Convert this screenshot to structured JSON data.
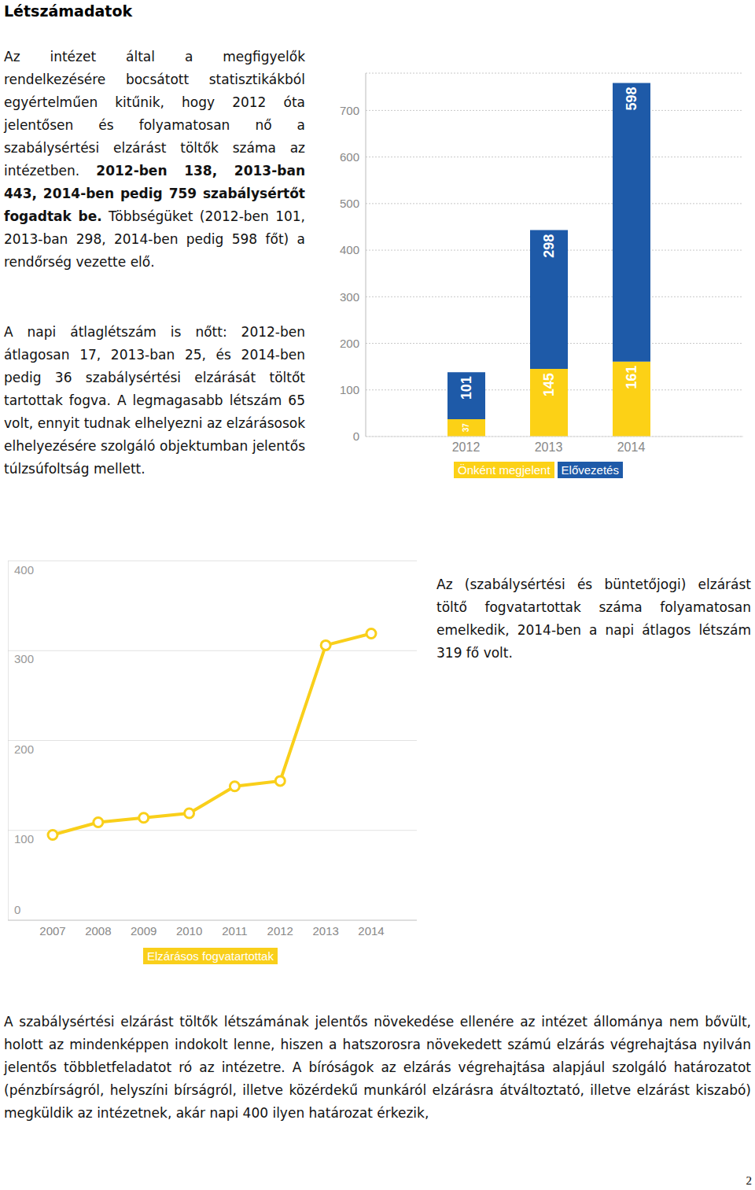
{
  "heading": "Létszámadatok",
  "intro": [
    {
      "text": "Az intézet által a megfigyelők rendelkezésére bocsátott statisztikákból egyértelműen kitűnik, hogy 2012 óta jelentősen és folyamatosan nő a szabálysértési elzárást töltők száma az intézetben. ",
      "bold": false
    },
    {
      "text": "2012-ben 138, 2013-ban 443, 2014-ben pedig 759 szabálysértőt fogadtak be.",
      "bold": true
    },
    {
      "text": " Többségüket (2012-ben 101, 2013-ban 298, 2014-ben pedig 598 főt) a rendőrség vezette elő.",
      "bold": false
    }
  ],
  "daily": [
    {
      "text": "A napi átlaglétszám is nőtt: 2012-ben átlagosan 17, 2013-ban 25, és 2014-ben pedig 36 szabálysértési elzárását töltőt tartottak fogva. A legmagasabb létszám 65 volt, ennyit tudnak elhelyezni az elzárásosok elhelyezésére szolgáló objektumban jelentős túlzsúfoltság mellett.",
      "bold": false
    }
  ],
  "caption": [
    {
      "text": "Az (szabálysértési és büntetőjogi) elzárást töltő fogvatartottak száma folyamatosan emelkedik, 2014-ben a napi átlagos létszám 319 fő volt.",
      "bold": false
    }
  ],
  "staff": [
    {
      "text": "A szabálysértési elzárást töltők létszámának jelentős növekedése ellenére az intézet állománya nem bővült, holott az mindenképpen indokolt lenne, hiszen a hatszorosra növekedett számú elzárás végrehajtása nyilván jelentős többletfeladatot ró az intézetre. A bíróságok az elzárás végrehajtása alapjául szolgáló határozatot (pénzbírságról, helyszíni bírságról, illetve közérdekű munkáról elzárásra átváltoztató, illetve elzárást kiszabó) megküldik az intézetnek, akár napi 400 ilyen határozat érkezik,",
      "bold": false
    }
  ],
  "page_number": "2",
  "chart_data": [
    {
      "type": "bar",
      "stacked": true,
      "data_labels": true,
      "grid": true,
      "categories": [
        "2012",
        "2013",
        "2014"
      ],
      "series": [
        {
          "name": "Önként megjelent",
          "color": "#fcd116",
          "values": [
            37,
            145,
            161
          ]
        },
        {
          "name": "Elővezetés",
          "color": "#1e5aa8",
          "values": [
            101,
            298,
            598
          ]
        }
      ],
      "ylim": [
        0,
        780
      ],
      "yticks": [
        0,
        100,
        200,
        300,
        400,
        500,
        600,
        700
      ]
    },
    {
      "type": "line",
      "marker": "circle",
      "grid": true,
      "categories": [
        "2007",
        "2008",
        "2009",
        "2010",
        "2011",
        "2012",
        "2013",
        "2014"
      ],
      "series": [
        {
          "name": "Elzárásos fogvatartottak",
          "color": "#f9cf1a",
          "values": [
            95,
            109,
            114,
            119,
            149,
            155,
            306,
            319
          ]
        }
      ],
      "ylim": [
        0,
        400
      ],
      "yticks": [
        0,
        100,
        200,
        300,
        400
      ]
    }
  ]
}
